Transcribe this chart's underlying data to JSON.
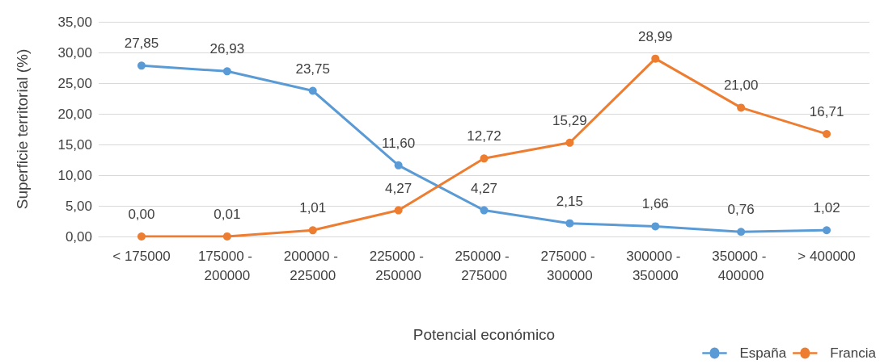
{
  "chart_data": {
    "type": "line",
    "xlabel": "Potencial económico",
    "ylabel": "Superficie territorial (%)",
    "categories": [
      "< 175000",
      "175000 - 200000",
      "200000 - 225000",
      "225000 - 250000",
      "250000 - 275000",
      "275000 - 300000",
      "300000 - 350000",
      "350000 - 400000",
      "> 400000"
    ],
    "series": [
      {
        "name": "España",
        "color": "#5b9bd5",
        "values": [
          27.85,
          26.93,
          23.75,
          11.6,
          4.27,
          2.15,
          1.66,
          0.76,
          1.02
        ],
        "value_labels": [
          "27,85",
          "26,93",
          "23,75",
          "11,60",
          "4,27",
          "2,15",
          "1,66",
          "0,76",
          "1,02"
        ]
      },
      {
        "name": "Francia",
        "color": "#ed7d31",
        "values": [
          0,
          0.01,
          1.01,
          4.27,
          12.72,
          15.29,
          28.99,
          21,
          16.71
        ],
        "value_labels": [
          "0,00",
          "0,01",
          "1,01",
          "4,27",
          "12,72",
          "15,29",
          "28,99",
          "21,00",
          "16,71"
        ]
      }
    ],
    "ylim": [
      0,
      35
    ],
    "yticks": [
      {
        "value": 0,
        "label": "0,00"
      },
      {
        "value": 5,
        "label": "5,00"
      },
      {
        "value": 10,
        "label": "10,00"
      },
      {
        "value": 15,
        "label": "15,00"
      },
      {
        "value": 20,
        "label": "20,00"
      },
      {
        "value": 25,
        "label": "25,00"
      },
      {
        "value": 30,
        "label": "30,00"
      },
      {
        "value": 35,
        "label": "35,00"
      }
    ],
    "grid": "y",
    "legend": "bottom right",
    "marker": "circle",
    "line_style": "solid"
  }
}
